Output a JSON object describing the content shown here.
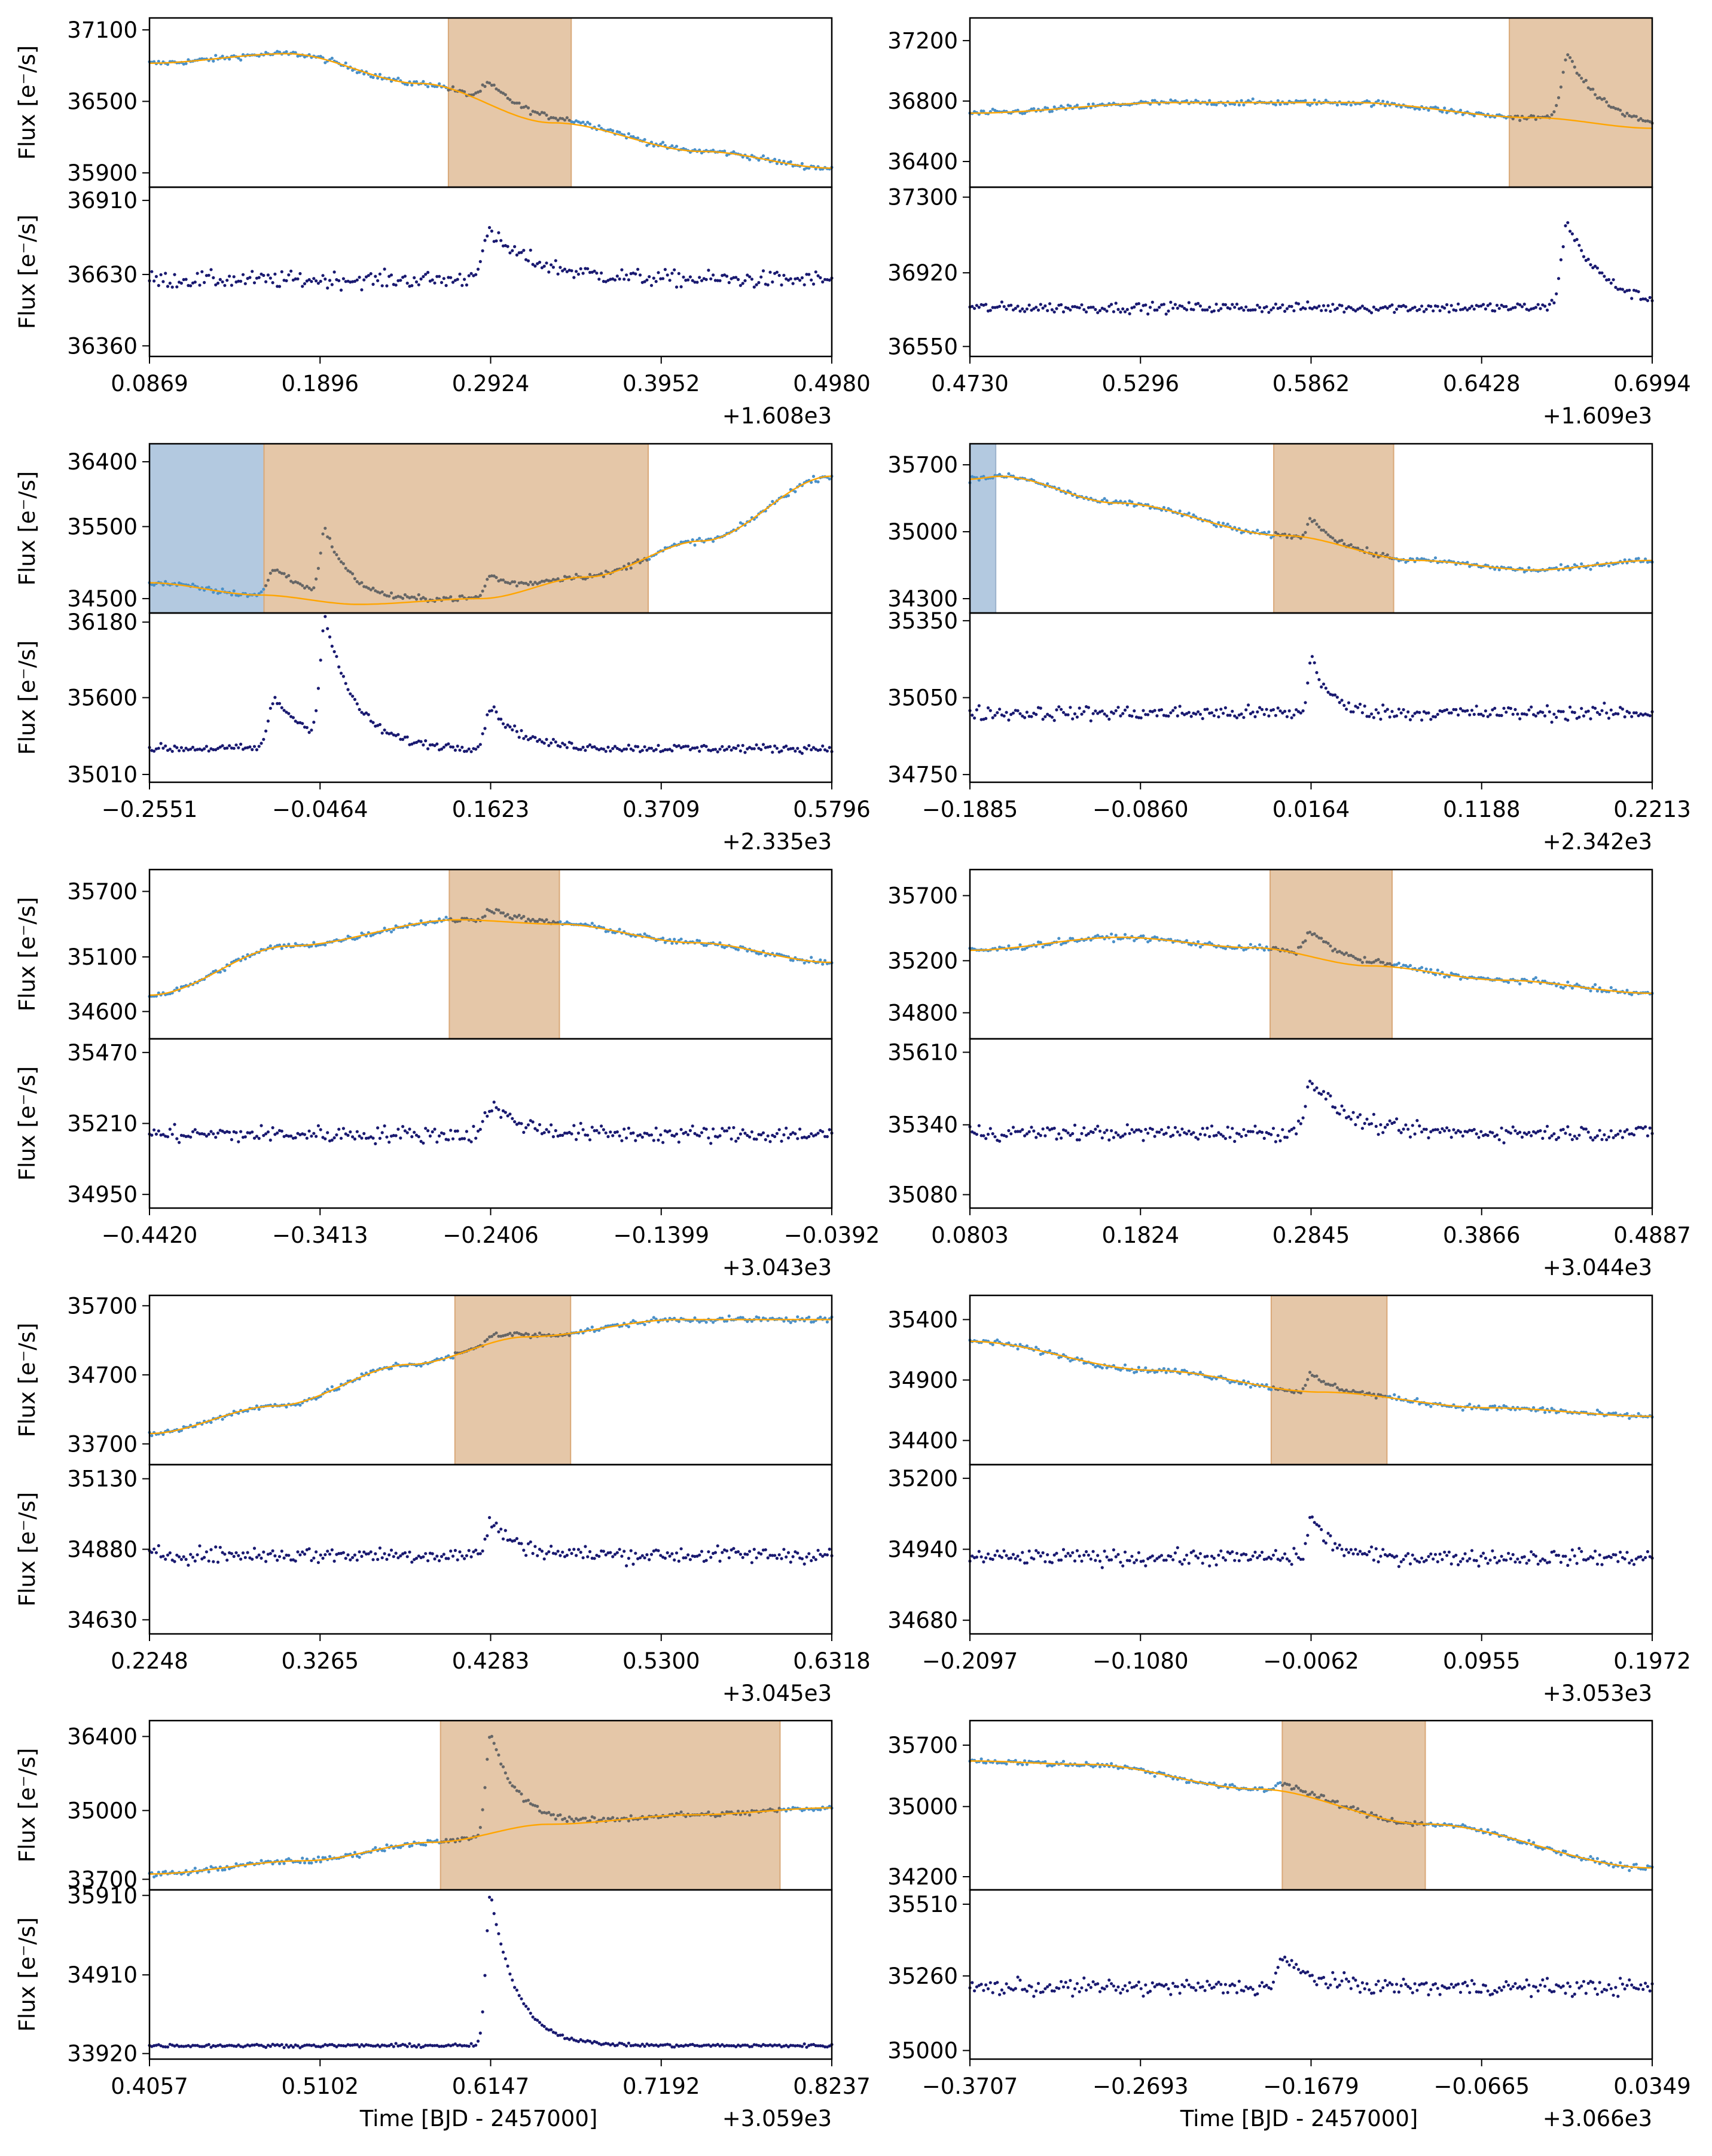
{
  "figure": {
    "common_xlabel": "Time [BJD - 2457000]"
  },
  "colors": {
    "raw": "#4a90c8",
    "raw_flare": "#666666",
    "model": "#ffa500",
    "residual": "#191970",
    "flare_window": "#e5c7a8",
    "flare_window_edge": "#d9a878",
    "masked_window": "#b3c9e0",
    "masked_window_edge": "#9cb3cc"
  },
  "chart_data": [
    {
      "type": "scatter",
      "panel": "row1-left",
      "xlabel": "",
      "ylabel": "Flux [e⁻/s]",
      "offset_label": "+1.608e3",
      "x_ticks": [
        "0.0869",
        "0.1896",
        "0.2924",
        "0.3952",
        "0.4980"
      ],
      "xlim": [
        0.0869,
        0.498
      ],
      "top": {
        "y_ticks": [
          35900,
          36500,
          37100
        ],
        "ylim": [
          35780,
          37200
        ],
        "trend_points": [
          [
            0.0869,
            36820
          ],
          [
            0.17,
            36900
          ],
          [
            0.25,
            36650
          ],
          [
            0.33,
            36320
          ],
          [
            0.42,
            36080
          ],
          [
            0.498,
            35940
          ]
        ]
      },
      "bottom": {
        "y_ticks": [
          36360,
          36630,
          36910
        ],
        "ylim": [
          36320,
          36960
        ],
        "baseline": 36610,
        "noise": 22
      },
      "flares": [
        {
          "t": 0.2924,
          "amp": 170,
          "decay": 0.03
        }
      ],
      "flare_windows": [
        [
          0.267,
          0.341
        ]
      ],
      "masked_windows": []
    },
    {
      "type": "scatter",
      "panel": "row1-right",
      "xlabel": "",
      "ylabel": "",
      "offset_label": "+1.609e3",
      "x_ticks": [
        "0.4730",
        "0.5296",
        "0.5862",
        "0.6428",
        "0.6994"
      ],
      "xlim": [
        0.473,
        0.6994
      ],
      "top": {
        "y_ticks": [
          36400,
          36800,
          37200
        ],
        "ylim": [
          36230,
          37350
        ],
        "trend_points": [
          [
            0.473,
            36720
          ],
          [
            0.54,
            36790
          ],
          [
            0.6,
            36790
          ],
          [
            0.66,
            36690
          ],
          [
            0.6994,
            36620
          ]
        ]
      },
      "bottom": {
        "y_ticks": [
          36550,
          36920,
          37300
        ],
        "ylim": [
          36500,
          37350
        ],
        "baseline": 36745,
        "noise": 18
      },
      "flares": [
        {
          "t": 0.6714,
          "amp": 420,
          "decay": 0.012
        }
      ],
      "flare_windows": [
        [
          0.652,
          0.6994
        ]
      ],
      "masked_windows": []
    },
    {
      "type": "scatter",
      "panel": "row2-left",
      "xlabel": "",
      "ylabel": "Flux [e⁻/s]",
      "offset_label": "+2.335e3",
      "x_ticks": [
        "−0.2551",
        "−0.0464",
        "0.1623",
        "0.3709",
        "0.5796"
      ],
      "xlim": [
        -0.2551,
        0.5796
      ],
      "top": {
        "y_ticks": [
          34500,
          35500,
          36400
        ],
        "ylim": [
          34300,
          36650
        ],
        "trend_points": [
          [
            -0.2551,
            34720
          ],
          [
            -0.12,
            34550
          ],
          [
            0.0,
            34420
          ],
          [
            0.15,
            34500
          ],
          [
            0.28,
            34800
          ],
          [
            0.42,
            35300
          ],
          [
            0.5796,
            36200
          ]
        ]
      },
      "bottom": {
        "y_ticks": [
          35010,
          35600,
          36180
        ],
        "ylim": [
          34950,
          36250
        ],
        "baseline": 35210,
        "noise": 22
      },
      "flares": [
        {
          "t": -0.101,
          "amp": 380,
          "decay": 0.045
        },
        {
          "t": -0.04,
          "amp": 900,
          "decay": 0.035
        },
        {
          "t": 0.1623,
          "amp": 320,
          "decay": 0.035
        }
      ],
      "flare_windows": [
        [
          -0.115,
          0.355
        ]
      ],
      "masked_windows": [
        [
          -0.2551,
          -0.115
        ]
      ]
    },
    {
      "type": "scatter",
      "panel": "row2-right",
      "xlabel": "",
      "ylabel": "",
      "offset_label": "+2.342e3",
      "x_ticks": [
        "−0.1885",
        "−0.0860",
        "0.0164",
        "0.1188",
        "0.2213"
      ],
      "xlim": [
        -0.1885,
        0.2213
      ],
      "top": {
        "y_ticks": [
          34300,
          35000,
          35700
        ],
        "ylim": [
          34150,
          35920
        ],
        "trend_points": [
          [
            -0.1885,
            35550
          ],
          [
            -0.17,
            35580
          ],
          [
            -0.1,
            35300
          ],
          [
            0.0,
            34960
          ],
          [
            0.08,
            34700
          ],
          [
            0.15,
            34600
          ],
          [
            0.2213,
            34700
          ]
        ]
      },
      "bottom": {
        "y_ticks": [
          34750,
          35050,
          35350
        ],
        "ylim": [
          34720,
          35380
        ],
        "baseline": 34990,
        "noise": 20
      },
      "flares": [
        {
          "t": 0.0164,
          "amp": 230,
          "decay": 0.01
        }
      ],
      "flare_windows": [
        [
          -0.006,
          0.066
        ]
      ],
      "masked_windows": [
        [
          -0.1885,
          -0.173
        ]
      ]
    },
    {
      "type": "scatter",
      "panel": "row3-left",
      "xlabel": "",
      "ylabel": "Flux [e⁻/s]",
      "offset_label": "+3.043e3",
      "x_ticks": [
        "−0.4420",
        "−0.3413",
        "−0.2406",
        "−0.1399",
        "−0.0392"
      ],
      "xlim": [
        -0.442,
        -0.0392
      ],
      "top": {
        "y_ticks": [
          34600,
          35100,
          35700
        ],
        "ylim": [
          34350,
          35900
        ],
        "trend_points": [
          [
            -0.442,
            34750
          ],
          [
            -0.36,
            35200
          ],
          [
            -0.26,
            35440
          ],
          [
            -0.2,
            35400
          ],
          [
            -0.12,
            35230
          ],
          [
            -0.0392,
            35050
          ]
        ]
      },
      "bottom": {
        "y_ticks": [
          34950,
          35210,
          35470
        ],
        "ylim": [
          34900,
          35520
        ],
        "baseline": 35170,
        "noise": 22
      },
      "flares": [
        {
          "t": -0.2406,
          "amp": 110,
          "decay": 0.018
        }
      ],
      "flare_windows": [
        [
          -0.265,
          -0.2
        ]
      ],
      "masked_windows": []
    },
    {
      "type": "scatter",
      "panel": "row3-right",
      "xlabel": "",
      "ylabel": "",
      "offset_label": "+3.044e3",
      "x_ticks": [
        "0.0803",
        "0.1824",
        "0.2845",
        "0.3866",
        "0.4887"
      ],
      "xlim": [
        0.0803,
        0.4887
      ],
      "top": {
        "y_ticks": [
          34800,
          35200,
          35700
        ],
        "ylim": [
          34600,
          35900
        ],
        "trend_points": [
          [
            0.0803,
            35280
          ],
          [
            0.17,
            35380
          ],
          [
            0.25,
            35300
          ],
          [
            0.32,
            35160
          ],
          [
            0.4,
            35050
          ],
          [
            0.4887,
            34950
          ]
        ]
      },
      "bottom": {
        "y_ticks": [
          35080,
          35340,
          35610
        ],
        "ylim": [
          35030,
          35660
        ],
        "baseline": 35310,
        "noise": 20
      },
      "flares": [
        {
          "t": 0.2845,
          "amp": 200,
          "decay": 0.02
        }
      ],
      "flare_windows": [
        [
          0.26,
          0.333
        ]
      ],
      "masked_windows": []
    },
    {
      "type": "scatter",
      "panel": "row4-left",
      "xlabel": "",
      "ylabel": "Flux [e⁻/s]",
      "offset_label": "+3.045e3",
      "x_ticks": [
        "0.2248",
        "0.3265",
        "0.4283",
        "0.5300",
        "0.6318"
      ],
      "xlim": [
        0.2248,
        0.6318
      ],
      "top": {
        "y_ticks": [
          33700,
          34700,
          35700
        ],
        "ylim": [
          33400,
          35850
        ],
        "trend_points": [
          [
            0.2248,
            33850
          ],
          [
            0.3,
            34250
          ],
          [
            0.38,
            34850
          ],
          [
            0.45,
            35250
          ],
          [
            0.54,
            35500
          ],
          [
            0.6318,
            35500
          ]
        ]
      },
      "bottom": {
        "y_ticks": [
          34630,
          34880,
          35130
        ],
        "ylim": [
          34580,
          35180
        ],
        "baseline": 34860,
        "noise": 20
      },
      "flares": [
        {
          "t": 0.4283,
          "amp": 120,
          "decay": 0.015
        }
      ],
      "flare_windows": [
        [
          0.407,
          0.476
        ]
      ],
      "masked_windows": []
    },
    {
      "type": "scatter",
      "panel": "row4-right",
      "xlabel": "",
      "ylabel": "",
      "offset_label": "+3.053e3",
      "x_ticks": [
        "−0.2097",
        "−0.1080",
        "−0.0062",
        "0.0955",
        "0.1972"
      ],
      "xlim": [
        -0.2097,
        0.1972
      ],
      "top": {
        "y_ticks": [
          34400,
          34900,
          35400
        ],
        "ylim": [
          34200,
          35600
        ],
        "trend_points": [
          [
            -0.2097,
            35220
          ],
          [
            -0.1,
            34980
          ],
          [
            0.0,
            34800
          ],
          [
            0.1,
            34670
          ],
          [
            0.1972,
            34600
          ]
        ]
      },
      "bottom": {
        "y_ticks": [
          34680,
          34940,
          35200
        ],
        "ylim": [
          34630,
          35250
        ],
        "baseline": 34910,
        "noise": 20
      },
      "flares": [
        {
          "t": -0.0062,
          "amp": 150,
          "decay": 0.012
        }
      ],
      "flare_windows": [
        [
          -0.03,
          0.039
        ]
      ],
      "masked_windows": []
    },
    {
      "type": "scatter",
      "panel": "row5-left",
      "xlabel": "Time [BJD - 2457000]",
      "ylabel": "Flux [e⁻/s]",
      "offset_label": "+3.059e3",
      "x_ticks": [
        "0.4057",
        "0.5102",
        "0.6147",
        "0.7192",
        "0.8237"
      ],
      "xlim": [
        0.4057,
        0.8237
      ],
      "top": {
        "y_ticks": [
          33700,
          35000,
          36400
        ],
        "ylim": [
          33500,
          36700
        ],
        "trend_points": [
          [
            0.4057,
            33800
          ],
          [
            0.5,
            34050
          ],
          [
            0.58,
            34400
          ],
          [
            0.65,
            34740
          ],
          [
            0.74,
            34920
          ],
          [
            0.8237,
            35050
          ]
        ]
      },
      "bottom": {
        "y_ticks": [
          33920,
          34910,
          35910
        ],
        "ylim": [
          33850,
          35980
        ],
        "baseline": 34020,
        "noise": 14
      },
      "flares": [
        {
          "t": 0.6147,
          "amp": 1900,
          "decay": 0.016
        }
      ],
      "flare_windows": [
        [
          0.584,
          0.792
        ]
      ],
      "masked_windows": []
    },
    {
      "type": "scatter",
      "panel": "row5-right",
      "xlabel": "Time [BJD - 2457000]",
      "ylabel": "",
      "offset_label": "+3.066e3",
      "x_ticks": [
        "−0.3707",
        "−0.2693",
        "−0.1679",
        "−0.0665",
        "0.0349"
      ],
      "xlim": [
        -0.3707,
        0.0349
      ],
      "top": {
        "y_ticks": [
          34200,
          35000,
          35700
        ],
        "ylim": [
          34050,
          35980
        ],
        "trend_points": [
          [
            -0.3707,
            35520
          ],
          [
            -0.3,
            35480
          ],
          [
            -0.2,
            35200
          ],
          [
            -0.1,
            34800
          ],
          [
            0.0349,
            34300
          ]
        ]
      },
      "bottom": {
        "y_ticks": [
          35000,
          35260,
          35510
        ],
        "ylim": [
          34970,
          35560
        ],
        "baseline": 35220,
        "noise": 20
      },
      "flares": [
        {
          "t": -0.185,
          "amp": 100,
          "decay": 0.018
        }
      ],
      "flare_windows": [
        [
          -0.185,
          -0.1
        ]
      ],
      "masked_windows": []
    }
  ]
}
